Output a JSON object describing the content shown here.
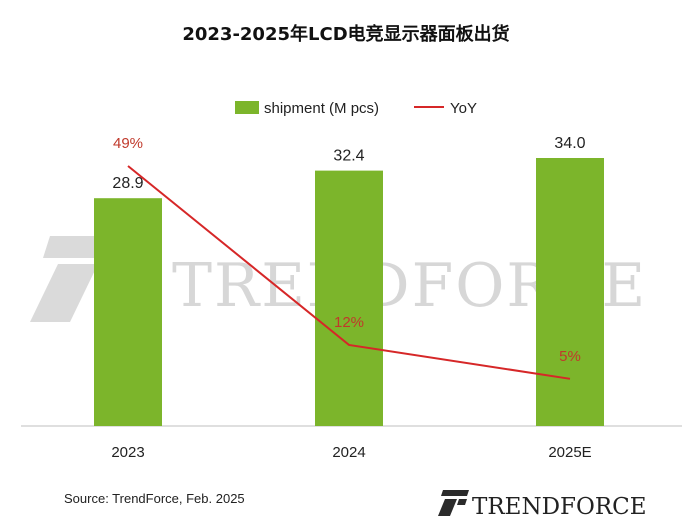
{
  "chart_data": {
    "type": "bar",
    "title": "2023-2025年LCD电竞显示器面板出货",
    "categories": [
      "2023",
      "2024",
      "2025E"
    ],
    "series": [
      {
        "name": "shipment (M pcs)",
        "type": "bar",
        "values": [
          28.9,
          32.4,
          34.0
        ],
        "labels": [
          "28.9",
          "32.4",
          "34.0"
        ]
      },
      {
        "name": "YoY",
        "type": "line",
        "values": [
          49,
          12,
          5
        ],
        "labels": [
          "49%",
          "12%",
          "5%"
        ]
      }
    ],
    "legend_position": "top-center",
    "grid": false,
    "colors": {
      "bar": "#7cb52b",
      "line": "#d62728",
      "yoy_label": "#c0392b"
    }
  },
  "source": "Source: TrendForce, Feb. 2025",
  "watermark": "TRENDFORCE",
  "logo_text": "TRENDFORCE"
}
